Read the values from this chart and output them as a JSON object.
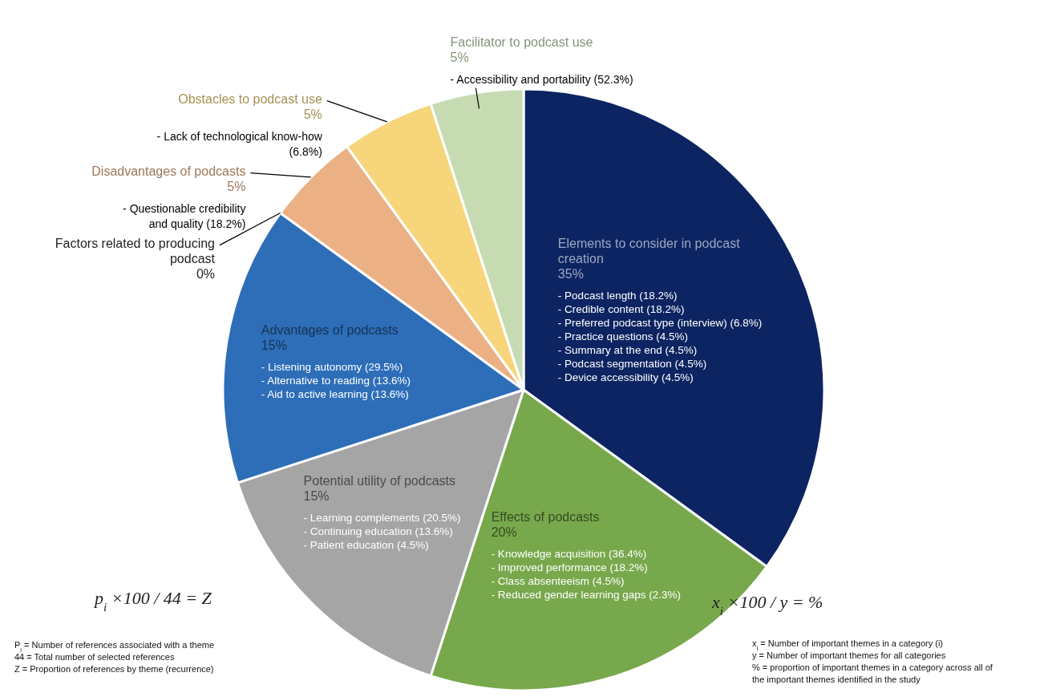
{
  "chart_data": {
    "type": "pie",
    "categories": [
      "Elements to consider in podcast creation",
      "Effects of podcasts",
      "Potential utility of podcasts",
      "Advantages of podcasts",
      "Factors related to producing podcast",
      "Disadvantages of podcasts",
      "Obstacles to podcast use",
      "Facilitator to podcast use"
    ],
    "values": [
      35,
      20,
      15,
      15,
      0,
      5,
      5,
      5
    ],
    "value_labels": [
      "35%",
      "20%",
      "15%",
      "15%",
      "0%",
      "5%",
      "5%",
      "5%"
    ],
    "colors": [
      "#0c2461",
      "#78a84c",
      "#a5a5a5",
      "#2e6eb8",
      "#222222",
      "#ebb084",
      "#f6d57b",
      "#c6dbb2"
    ],
    "annotations": [
      {
        "text": "- Podcast length (18.2%)",
        "x": "Elements to consider in podcast creation"
      },
      {
        "text": "- Credible content (18.2%)",
        "x": "Elements to consider in podcast creation"
      },
      {
        "text": "- Preferred podcast type (interview) (6.8%)",
        "x": "Elements to consider in podcast creation"
      },
      {
        "text": "- Practice questions (4.5%)",
        "x": "Elements to consider in podcast creation"
      },
      {
        "text": "- Summary at the end (4.5%)",
        "x": "Elements to consider in podcast creation"
      },
      {
        "text": "- Podcast segmentation (4.5%)",
        "x": "Elements to consider in podcast creation"
      },
      {
        "text": "- Device accessibility (4.5%)",
        "x": "Elements to consider in podcast creation"
      },
      {
        "text": "- Knowledge acquisition (36.4%)",
        "x": "Effects of podcasts"
      },
      {
        "text": "- Improved performance (18.2%)",
        "x": "Effects of podcasts"
      },
      {
        "text": "- Class absenteeism (4.5%)",
        "x": "Effects of podcasts"
      },
      {
        "text": "- Reduced gender learning gaps (2.3%)",
        "x": "Effects of podcasts"
      },
      {
        "text": "- Learning complements (20.5%)",
        "x": "Potential utility of podcasts"
      },
      {
        "text": "- Continuing education (13.6%)",
        "x": "Potential utility of podcasts"
      },
      {
        "text": "- Patient education (4.5%)",
        "x": "Potential utility of podcasts"
      },
      {
        "text": "- Listening autonomy (29.5%)",
        "x": "Advantages of podcasts"
      },
      {
        "text": "- Alternative to reading (13.6%)",
        "x": "Advantages of podcasts"
      },
      {
        "text": "- Aid to active learning (13.6%)",
        "x": "Advantages of podcasts"
      },
      {
        "text": "- Questionable credibility and quality (18.2%)",
        "x": "Disadvantages of podcasts"
      },
      {
        "text": "- Lack of technological know-how (6.8%)",
        "x": "Obstacles to podcast use"
      },
      {
        "text": "- Accessibility and portability (52.3%)",
        "x": "Facilitator to podcast use"
      },
      "p$_{i}$ ×100 / 44 = Z",
      "P$_{i}$ = Number of references associated with a theme",
      "44 = Total number of selected references",
      "Z = Proportion of references by theme (recurrence)",
      "x$_{i}$ ×100 / y = %",
      "x$_{i}$ = Number of important themes in a category (i)",
      "y = Number of important themes for all categories",
      "% = proportion of important themes in a category across all of the important themes identified in the study"
    ]
  }
}
